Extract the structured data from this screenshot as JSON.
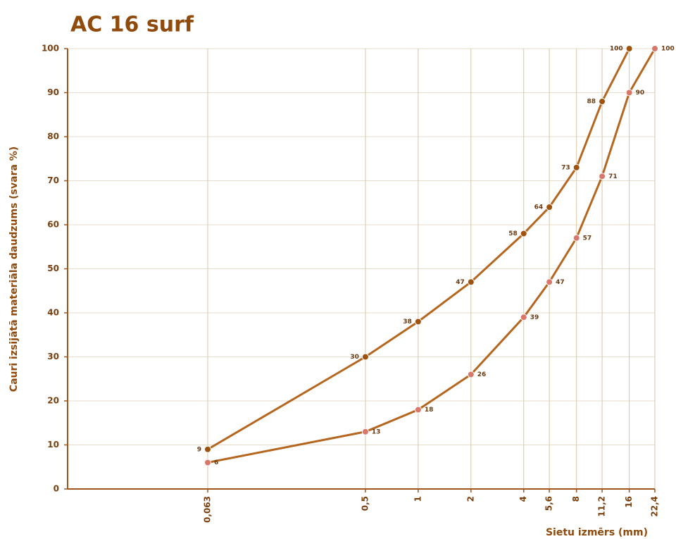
{
  "chart_data": {
    "type": "line",
    "title": "AC 16 surf",
    "x_label": "Sietu izmērs (mm)",
    "y_label": "Cauri izsijātā materiāla daudzums (svara %)",
    "x": [
      0.063,
      0.5,
      1,
      2,
      4,
      5.6,
      8,
      11.2,
      16,
      22.4
    ],
    "x_log": true,
    "xlim": [
      0.01,
      22.4
    ],
    "xticks": [
      {
        "value": 0.063,
        "label": "0,063"
      },
      {
        "value": 0.5,
        "label": "0,5"
      },
      1,
      2,
      4,
      {
        "value": 5.6,
        "label": "5,6"
      },
      8,
      {
        "value": 11.2,
        "label": "11,2"
      },
      16,
      {
        "value": 22.4,
        "label": "22,4"
      }
    ],
    "ylim": [
      0,
      100
    ],
    "yticks": [
      0,
      10,
      20,
      30,
      40,
      50,
      60,
      70,
      80,
      90,
      100
    ],
    "grid": true,
    "line_color": "#b5661f",
    "series": [
      {
        "color": "#a0520f",
        "values": [
          9,
          30,
          38,
          47,
          58,
          64,
          73,
          88,
          100,
          null
        ]
      },
      {
        "color": "#d9776b",
        "values": [
          6,
          13,
          18,
          26,
          39,
          47,
          57,
          71,
          90,
          100
        ]
      }
    ]
  }
}
